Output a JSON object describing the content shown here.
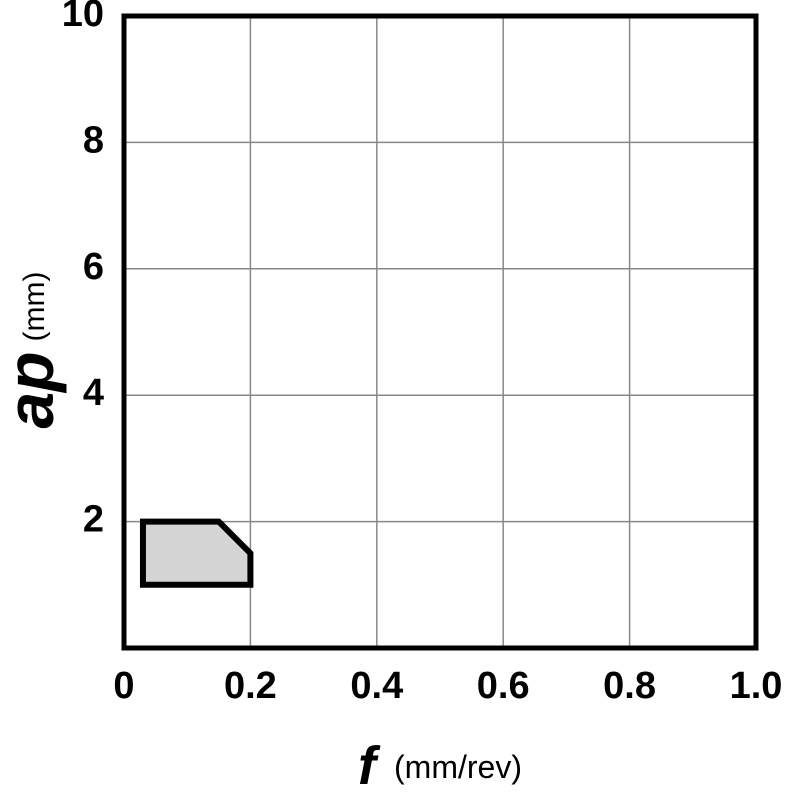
{
  "chart_data": {
    "type": "polygon",
    "x": [
      0.03,
      0.03,
      0.15,
      0.2,
      0.2
    ],
    "values": [
      1,
      2,
      2,
      1.5,
      1
    ],
    "color": "#d4d4d4",
    "edge_color": "#000000",
    "xlim": [
      0,
      1
    ],
    "ylim": [
      0,
      10
    ],
    "xticks": [
      0,
      0.2,
      0.4,
      0.6,
      0.8,
      {
        "value": 1,
        "label": "1.0"
      }
    ],
    "yticks": [
      2,
      4,
      6,
      8,
      10
    ],
    "grid": true,
    "xlabel": {
      "symbol": "f",
      "unit": "(mm/rev)"
    },
    "ylabel": {
      "symbol": "ap",
      "unit": "(mm)"
    }
  }
}
